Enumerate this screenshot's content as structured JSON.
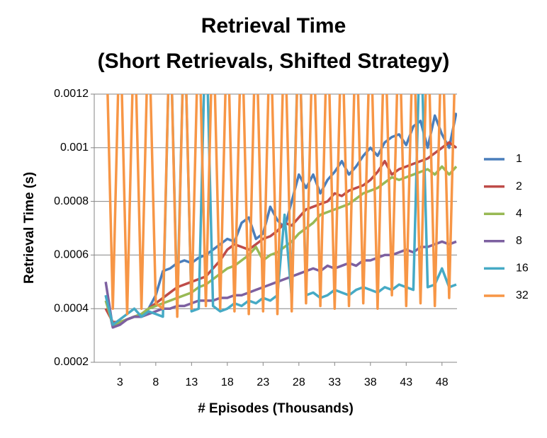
{
  "chart_data": {
    "type": "line",
    "title": [
      "Retrieval Time",
      "(Short Retrievals, Shifted Strategy)"
    ],
    "x_label": "# Episodes (Thousands)",
    "y_label": "Retrieval Time (s)",
    "x": [
      1,
      2,
      3,
      4,
      5,
      6,
      7,
      8,
      9,
      10,
      11,
      12,
      13,
      14,
      15,
      16,
      17,
      18,
      19,
      20,
      21,
      22,
      23,
      24,
      25,
      26,
      27,
      28,
      29,
      30,
      31,
      32,
      33,
      34,
      35,
      36,
      37,
      38,
      39,
      40,
      41,
      42,
      43,
      44,
      45,
      46,
      47,
      48,
      49,
      50
    ],
    "xlim": [
      -0.6,
      50.1
    ],
    "xticks": [
      3,
      8,
      13,
      18,
      23,
      28,
      33,
      38,
      43,
      48
    ],
    "ylim": [
      0.0002,
      0.0012
    ],
    "yticks": [
      0.0002,
      0.0004,
      0.0006,
      0.0008,
      0.001,
      0.0012
    ],
    "grid": true,
    "legend": "right",
    "series": [
      {
        "name": "1",
        "color": "#4a7ebb",
        "values": [
          0.00045,
          0.00033,
          0.00035,
          0.00036,
          0.00037,
          0.00037,
          0.0004,
          0.00045,
          0.00054,
          0.00055,
          0.00057,
          0.00058,
          0.00057,
          0.00059,
          0.0006,
          0.00062,
          0.00064,
          0.00066,
          0.00065,
          0.00072,
          0.00074,
          0.00066,
          0.00068,
          0.00078,
          0.00073,
          0.0007,
          0.0008,
          0.0009,
          0.00085,
          0.0009,
          0.00083,
          0.00088,
          0.00091,
          0.00095,
          0.0009,
          0.00093,
          0.00097,
          0.001,
          0.00097,
          0.00102,
          0.00104,
          0.00105,
          0.00101,
          0.00108,
          0.0011,
          0.001,
          0.00112,
          0.00105,
          0.001,
          0.00113
        ]
      },
      {
        "name": "2",
        "color": "#be4b48",
        "values": [
          0.0004,
          0.00035,
          0.00035,
          0.00036,
          0.00037,
          0.00038,
          0.0004,
          0.00042,
          0.00044,
          0.00046,
          0.00048,
          0.00049,
          0.0005,
          0.00051,
          0.00052,
          0.00055,
          0.00058,
          0.00062,
          0.00064,
          0.00063,
          0.00062,
          0.00064,
          0.00066,
          0.00067,
          0.00069,
          0.00072,
          0.00071,
          0.00074,
          0.00077,
          0.00078,
          0.00079,
          0.0008,
          0.00083,
          0.00082,
          0.00084,
          0.00085,
          0.00086,
          0.00088,
          0.00091,
          0.00095,
          0.0009,
          0.00092,
          0.00093,
          0.00094,
          0.00095,
          0.00096,
          0.00098,
          0.001,
          0.00102,
          0.001
        ]
      },
      {
        "name": "4",
        "color": "#98b954",
        "values": [
          0.00043,
          0.00034,
          0.00035,
          0.00036,
          0.00037,
          0.00038,
          0.0004,
          0.00041,
          0.00042,
          0.00043,
          0.00044,
          0.00045,
          0.00046,
          0.00048,
          0.00049,
          0.00051,
          0.00053,
          0.00055,
          0.00056,
          0.00058,
          0.0006,
          0.00063,
          0.00058,
          0.0006,
          0.00061,
          0.00063,
          0.00065,
          0.00068,
          0.0007,
          0.00072,
          0.00075,
          0.00076,
          0.00077,
          0.00078,
          0.00079,
          0.00081,
          0.00083,
          0.00084,
          0.00085,
          0.00087,
          0.00089,
          0.00088,
          0.00089,
          0.0009,
          0.00091,
          0.00092,
          0.0009,
          0.00093,
          0.0009,
          0.00093
        ]
      },
      {
        "name": "8",
        "color": "#7d60a0",
        "values": [
          0.0005,
          0.00033,
          0.00034,
          0.00036,
          0.00037,
          0.00037,
          0.00038,
          0.00039,
          0.0004,
          0.0004,
          0.00041,
          0.00041,
          0.00042,
          0.00043,
          0.00043,
          0.00043,
          0.00044,
          0.00044,
          0.00045,
          0.00045,
          0.00046,
          0.00047,
          0.00048,
          0.00049,
          0.0005,
          0.00051,
          0.00052,
          0.00053,
          0.00054,
          0.00055,
          0.00054,
          0.00056,
          0.00055,
          0.00056,
          0.00057,
          0.00056,
          0.00058,
          0.00058,
          0.00059,
          0.0006,
          0.0006,
          0.00061,
          0.00062,
          0.00061,
          0.00063,
          0.00063,
          0.00064,
          0.00065,
          0.00064,
          0.00065
        ]
      },
      {
        "name": "16",
        "color": "#46aac5",
        "values": [
          0.00045,
          0.00034,
          0.00036,
          0.00038,
          0.0004,
          0.00037,
          0.00039,
          0.00038,
          0.00037,
          0.0015,
          0.0004,
          0.0015,
          0.00039,
          0.0004,
          0.0015,
          0.00041,
          0.00039,
          0.0004,
          0.00042,
          0.00041,
          0.00043,
          0.00042,
          0.00044,
          0.00043,
          0.00045,
          0.00075,
          0.00044,
          0.0015,
          0.00045,
          0.00046,
          0.00044,
          0.00045,
          0.00047,
          0.00046,
          0.00045,
          0.00047,
          0.00048,
          0.00047,
          0.00046,
          0.00048,
          0.00047,
          0.00049,
          0.00048,
          0.00047,
          0.0015,
          0.00048,
          0.00049,
          0.00055,
          0.00048,
          0.00049
        ]
      },
      {
        "name": "32",
        "color": "#f79646",
        "values": [
          0.0015,
          0.0004,
          0.0015,
          0.00038,
          0.0015,
          0.0004,
          0.0015,
          0.00042,
          0.0004,
          0.0015,
          0.00037,
          0.0015,
          0.0004,
          0.0015,
          0.00041,
          0.0015,
          0.0004,
          0.0015,
          0.00039,
          0.0015,
          0.00038,
          0.0015,
          0.00039,
          0.0015,
          0.00038,
          0.0015,
          0.00039,
          0.0015,
          0.00042,
          0.0015,
          0.00041,
          0.0015,
          0.0004,
          0.0015,
          0.00041,
          0.0015,
          0.00042,
          0.0015,
          0.0004,
          0.0015,
          0.00045,
          0.0015,
          0.00041,
          0.0015,
          0.00042,
          0.0015,
          0.00041,
          0.0015,
          0.00044,
          0.0015
        ]
      }
    ]
  }
}
